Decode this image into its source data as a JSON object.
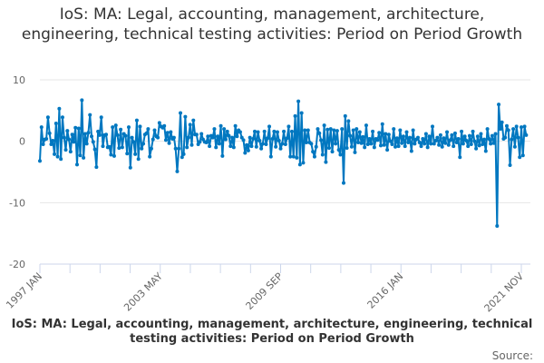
{
  "chart_data": {
    "type": "line",
    "title": "IoS: MA: Legal, accounting, management, architecture, engineering, technical testing activities: Period on Period Growth",
    "xlabel": "",
    "ylabel": "",
    "start": "1997 JAN",
    "frequency": "monthly",
    "x_tick_labels": [
      "1997 JAN",
      "2003 MAY",
      "2009 SEP",
      "2016 JAN",
      "2021 NOV"
    ],
    "y_ticks": [
      10,
      0,
      -10,
      -20
    ],
    "ylim": [
      -20,
      10
    ],
    "grid": true,
    "legend": "bottom",
    "series": [
      {
        "name": "IoS: MA: Legal, accounting, management, architecture, engineering, technical testing activities: Period on Period Growth",
        "color": "#0077c0",
        "values": [
          -3.2,
          2.3,
          -0.5,
          0.3,
          0.4,
          3.9,
          1.3,
          -0.5,
          0.1,
          -2.1,
          2.9,
          -2.5,
          5.3,
          -2.9,
          3.9,
          0.6,
          -1.4,
          1.7,
          0.3,
          -1.7,
          1.1,
          -0.1,
          2.2,
          -3.8,
          2.1,
          -2.3,
          6.7,
          -2.7,
          1.2,
          -0.4,
          1.4,
          4.3,
          0.8,
          -0.1,
          -1.3,
          -4.2,
          1.6,
          1.0,
          3.9,
          -0.8,
          1.0,
          1.1,
          -1.0,
          -0.9,
          -2.2,
          2.3,
          -2.4,
          2.6,
          1.0,
          -1.1,
          1.9,
          -1.0,
          1.2,
          0.9,
          -2.0,
          2.3,
          -4.3,
          0.6,
          -0.1,
          -2.1,
          3.4,
          -2.9,
          2.4,
          -1.2,
          -0.4,
          1.1,
          1.3,
          2.0,
          -2.5,
          -1.2,
          0.3,
          1.8,
          0.8,
          0.6,
          3.0,
          2.4,
          2.2,
          2.5,
          0.2,
          1.4,
          -0.3,
          1.5,
          0.4,
          0.6,
          -1.2,
          -4.9,
          -1.2,
          4.6,
          -2.6,
          -2.1,
          4.0,
          -1.0,
          0.6,
          2.7,
          -0.6,
          3.4,
          1.1,
          1.1,
          -0.5,
          -0.1,
          1.2,
          0.3,
          -0.1,
          -0.2,
          0.8,
          -0.8,
          0.9,
          0.6,
          2.0,
          -1.0,
          0.8,
          -0.4,
          2.5,
          -2.4,
          2.0,
          0.3,
          1.6,
          0.9,
          -0.8,
          0.6,
          -1.0,
          2.5,
          0.8,
          1.8,
          1.5,
          0.6,
          0.2,
          -1.9,
          -0.6,
          -1.5,
          0.6,
          -0.8,
          0.4,
          1.6,
          -0.9,
          1.5,
          0.1,
          -1.2,
          -0.4,
          1.6,
          -0.5,
          0.5,
          2.4,
          -2.5,
          0.4,
          1.6,
          -0.9,
          1.5,
          0.1,
          -1.2,
          -0.4,
          1.6,
          -0.5,
          0.5,
          2.4,
          -2.5,
          1.6,
          -2.5,
          4.1,
          -2.7,
          6.5,
          -3.8,
          4.6,
          -3.5,
          1.8,
          -0.2,
          1.8,
          -0.2,
          -0.4,
          -1.7,
          -2.5,
          -0.9,
          2.0,
          1.3,
          0.2,
          -2.2,
          2.6,
          -3.4,
          1.9,
          -1.1,
          2.0,
          -1.7,
          1.8,
          -0.4,
          1.7,
          -1.4,
          -2.2,
          2.0,
          -6.8,
          4.1,
          -1.1,
          3.3,
          0.9,
          -0.9,
          1.8,
          -1.8,
          2.0,
          -0.2,
          1.5,
          -0.3,
          0.7,
          -1.0,
          2.6,
          -0.5,
          0.4,
          -0.4,
          1.6,
          -1.0,
          0.4,
          0.2,
          1.4,
          -0.7,
          2.8,
          -0.6,
          1.2,
          -1.4,
          1.1,
          0.0,
          -0.5,
          2.0,
          -0.9,
          0.5,
          -0.8,
          1.8,
          -0.3,
          0.8,
          -0.8,
          1.5,
          -0.2,
          0.6,
          -1.6,
          1.8,
          -0.4,
          0.3,
          0.6,
          -0.2,
          -0.8,
          0.4,
          -0.4,
          1.2,
          -1.0,
          0.8,
          -0.4,
          2.4,
          -0.4,
          0.1,
          0.6,
          -0.6,
          1.0,
          -0.9,
          0.5,
          -0.3,
          1.5,
          -0.6,
          0.2,
          1.0,
          -0.8,
          1.3,
          -0.2,
          0.4,
          -2.6,
          1.6,
          -0.4,
          0.8,
          0.1,
          -0.8,
          0.9,
          -0.5,
          1.6,
          0.0,
          -1.2,
          0.8,
          -0.7,
          1.2,
          -0.5,
          0.3,
          -1.6,
          2.0,
          0.4,
          -0.4,
          0.9,
          -0.3,
          1.2,
          -13.8,
          6.0,
          2.0,
          3.1,
          0.4,
          0.6,
          2.5,
          1.8,
          -3.9,
          0.3,
          2.0,
          -0.9,
          2.4,
          0.6,
          -2.6,
          2.3,
          -2.3,
          2.4,
          1.0
        ]
      }
    ]
  },
  "legend_text": "IoS: MA: Legal, accounting, management, architecture, engineering, technical testing activities: Period on Period Growth",
  "source_label": "Source:"
}
